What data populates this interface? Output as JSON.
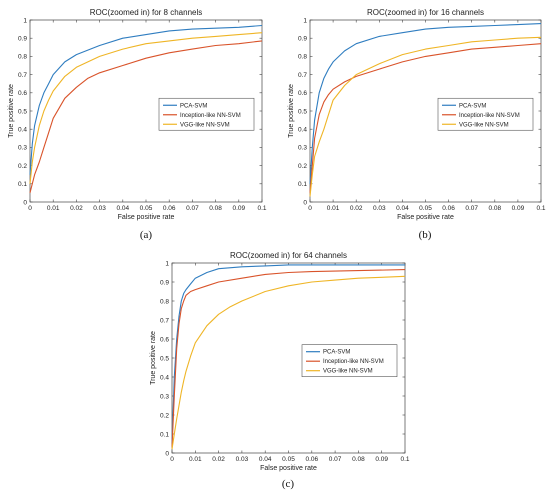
{
  "captions": [
    "(a)",
    "(b)",
    "(c)"
  ],
  "chart_data": [
    {
      "type": "line",
      "title": "ROC(zoomed in) for 8 channels",
      "xlabel": "False positive rate",
      "ylabel": "True positive rate",
      "xlim": [
        0,
        0.1
      ],
      "ylim": [
        0,
        1
      ],
      "xticks": [
        "0",
        "0.01",
        "0.02",
        "0.03",
        "0.04",
        "0.05",
        "0.06",
        "0.07",
        "0.08",
        "0.09",
        "0.1"
      ],
      "yticks": [
        "0",
        "0.1",
        "0.2",
        "0.3",
        "0.4",
        "0.5",
        "0.6",
        "0.7",
        "0.8",
        "0.9",
        "1"
      ],
      "legend_position": "center-right",
      "series": [
        {
          "name": "PCA-SVM",
          "color": "#2f7dc0",
          "x": [
            0,
            0.001,
            0.002,
            0.004,
            0.006,
            0.008,
            0.01,
            0.015,
            0.02,
            0.03,
            0.04,
            0.05,
            0.06,
            0.07,
            0.08,
            0.09,
            0.1
          ],
          "y": [
            0.15,
            0.32,
            0.42,
            0.53,
            0.6,
            0.65,
            0.7,
            0.77,
            0.81,
            0.86,
            0.9,
            0.92,
            0.94,
            0.95,
            0.955,
            0.96,
            0.97
          ]
        },
        {
          "name": "Inception-like NN-SVM",
          "color": "#d9532a",
          "x": [
            0,
            0.001,
            0.002,
            0.004,
            0.006,
            0.008,
            0.01,
            0.015,
            0.02,
            0.025,
            0.03,
            0.04,
            0.05,
            0.06,
            0.07,
            0.08,
            0.09,
            0.1
          ],
          "y": [
            0.05,
            0.1,
            0.15,
            0.22,
            0.3,
            0.38,
            0.46,
            0.57,
            0.63,
            0.68,
            0.71,
            0.75,
            0.79,
            0.82,
            0.84,
            0.86,
            0.87,
            0.885
          ]
        },
        {
          "name": "VGG-like NN-SVM",
          "color": "#efb526",
          "x": [
            0,
            0.001,
            0.002,
            0.004,
            0.006,
            0.008,
            0.01,
            0.015,
            0.02,
            0.03,
            0.04,
            0.05,
            0.06,
            0.07,
            0.08,
            0.09,
            0.1
          ],
          "y": [
            0.1,
            0.22,
            0.3,
            0.42,
            0.5,
            0.56,
            0.61,
            0.69,
            0.74,
            0.8,
            0.84,
            0.87,
            0.885,
            0.9,
            0.91,
            0.92,
            0.93
          ]
        }
      ]
    },
    {
      "type": "line",
      "title": "ROC(zoomed in) for 16 channels",
      "xlabel": "False positive rate",
      "ylabel": "True positive rate",
      "xlim": [
        0,
        0.1
      ],
      "ylim": [
        0,
        1
      ],
      "xticks": [
        "0",
        "0.01",
        "0.02",
        "0.03",
        "0.04",
        "0.05",
        "0.06",
        "0.07",
        "0.08",
        "0.09",
        "0.1"
      ],
      "yticks": [
        "0",
        "0.1",
        "0.2",
        "0.3",
        "0.4",
        "0.5",
        "0.6",
        "0.7",
        "0.8",
        "0.9",
        "1"
      ],
      "legend_position": "center-right",
      "series": [
        {
          "name": "PCA-SVM",
          "color": "#2f7dc0",
          "x": [
            0,
            0.001,
            0.002,
            0.004,
            0.006,
            0.008,
            0.01,
            0.015,
            0.02,
            0.03,
            0.04,
            0.05,
            0.06,
            0.07,
            0.08,
            0.09,
            0.1
          ],
          "y": [
            0.1,
            0.3,
            0.45,
            0.6,
            0.68,
            0.73,
            0.77,
            0.83,
            0.87,
            0.91,
            0.93,
            0.95,
            0.96,
            0.965,
            0.97,
            0.975,
            0.98
          ]
        },
        {
          "name": "Inception-like NN-SVM",
          "color": "#d9532a",
          "x": [
            0,
            0.001,
            0.002,
            0.004,
            0.006,
            0.008,
            0.01,
            0.015,
            0.02,
            0.03,
            0.04,
            0.05,
            0.06,
            0.07,
            0.08,
            0.09,
            0.1
          ],
          "y": [
            0.05,
            0.2,
            0.35,
            0.48,
            0.55,
            0.59,
            0.62,
            0.66,
            0.69,
            0.73,
            0.77,
            0.8,
            0.82,
            0.84,
            0.85,
            0.86,
            0.87
          ]
        },
        {
          "name": "VGG-like NN-SVM",
          "color": "#efb526",
          "x": [
            0,
            0.001,
            0.002,
            0.004,
            0.006,
            0.008,
            0.01,
            0.015,
            0.02,
            0.03,
            0.04,
            0.05,
            0.06,
            0.07,
            0.08,
            0.09,
            0.1
          ],
          "y": [
            0.03,
            0.15,
            0.25,
            0.33,
            0.4,
            0.48,
            0.56,
            0.64,
            0.7,
            0.76,
            0.81,
            0.84,
            0.86,
            0.88,
            0.89,
            0.9,
            0.905
          ]
        }
      ]
    },
    {
      "type": "line",
      "title": "ROC(zoomed in) for 64 channels",
      "xlabel": "False positive rate",
      "ylabel": "True positive rate",
      "xlim": [
        0,
        0.1
      ],
      "ylim": [
        0,
        1
      ],
      "xticks": [
        "0",
        "0.01",
        "0.02",
        "0.03",
        "0.04",
        "0.05",
        "0.06",
        "0.07",
        "0.08",
        "0.09",
        "0.1"
      ],
      "yticks": [
        "0",
        "0.1",
        "0.2",
        "0.3",
        "0.4",
        "0.5",
        "0.6",
        "0.7",
        "0.8",
        "0.9",
        "1"
      ],
      "legend_position": "center-right",
      "series": [
        {
          "name": "PCA-SVM",
          "color": "#2f7dc0",
          "x": [
            0,
            0.001,
            0.002,
            0.003,
            0.004,
            0.005,
            0.006,
            0.008,
            0.01,
            0.015,
            0.02,
            0.03,
            0.04,
            0.05,
            0.06,
            0.07,
            0.08,
            0.1
          ],
          "y": [
            0.05,
            0.4,
            0.6,
            0.72,
            0.8,
            0.84,
            0.86,
            0.89,
            0.92,
            0.95,
            0.97,
            0.98,
            0.985,
            0.99,
            0.99,
            0.99,
            0.99,
            0.99
          ]
        },
        {
          "name": "Inception-like NN-SVM",
          "color": "#d9532a",
          "x": [
            0,
            0.001,
            0.002,
            0.003,
            0.004,
            0.005,
            0.006,
            0.008,
            0.01,
            0.015,
            0.02,
            0.03,
            0.04,
            0.05,
            0.06,
            0.08,
            0.1
          ],
          "y": [
            0.03,
            0.3,
            0.55,
            0.68,
            0.76,
            0.8,
            0.83,
            0.85,
            0.86,
            0.88,
            0.9,
            0.92,
            0.94,
            0.95,
            0.955,
            0.96,
            0.965
          ]
        },
        {
          "name": "VGG-like NN-SVM",
          "color": "#efb526",
          "x": [
            0,
            0.001,
            0.002,
            0.003,
            0.004,
            0.005,
            0.006,
            0.008,
            0.01,
            0.015,
            0.02,
            0.025,
            0.03,
            0.04,
            0.05,
            0.06,
            0.07,
            0.08,
            0.09,
            0.1
          ],
          "y": [
            0.02,
            0.1,
            0.18,
            0.25,
            0.32,
            0.38,
            0.43,
            0.51,
            0.58,
            0.67,
            0.73,
            0.77,
            0.8,
            0.85,
            0.88,
            0.9,
            0.91,
            0.92,
            0.925,
            0.93
          ]
        }
      ]
    }
  ]
}
